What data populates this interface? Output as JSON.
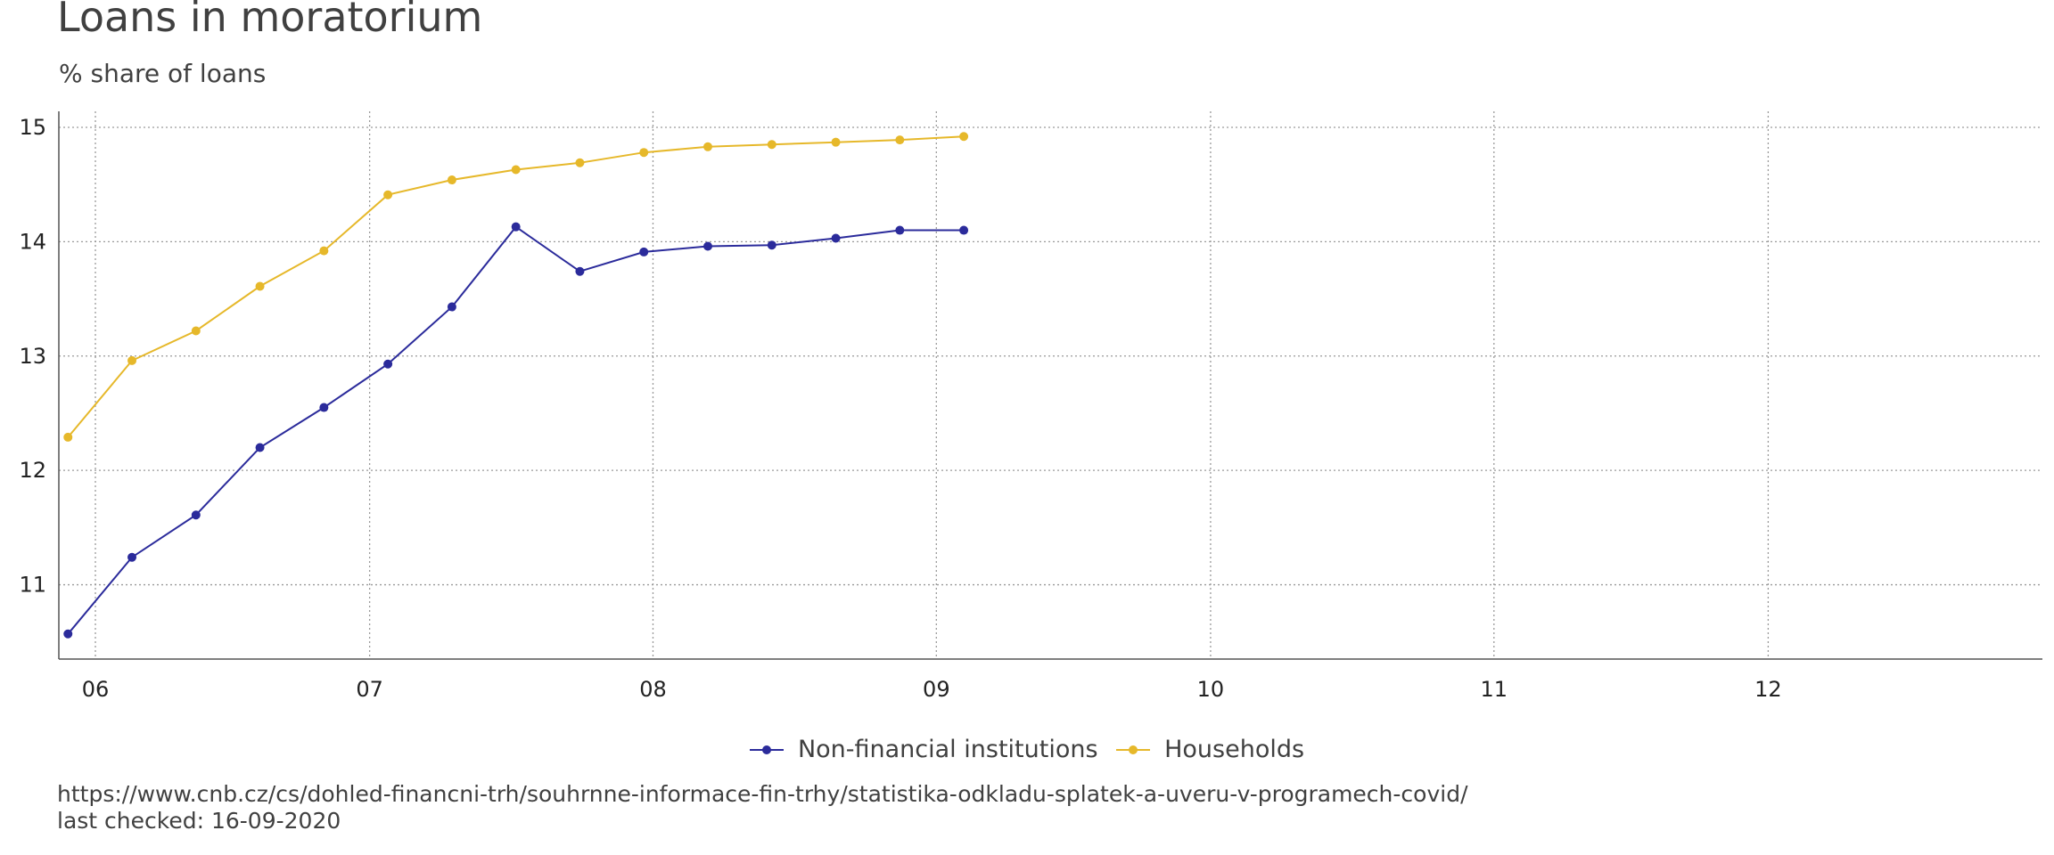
{
  "title": "Loans in moratorium",
  "subtitle": "% share of loans",
  "source": {
    "url": "https://www.cnb.cz/cs/dohled-financni-trh/souhrnne-informace-fin-trhy/statistika-odkladu-splatek-a-uveru-v-programech-covid/",
    "checked": "last checked: 16-09-2020"
  },
  "chart_data": {
    "type": "line",
    "title": "Loans in moratorium",
    "subtitle": "% share of loans",
    "xlabel": "",
    "ylabel": "",
    "x_ticks": [
      "06",
      "07",
      "08",
      "09",
      "10",
      "11",
      "12"
    ],
    "y_ticks": [
      11,
      12,
      13,
      14,
      15
    ],
    "xlim": [
      "2020-05-28",
      "2020-12-31"
    ],
    "ylim": [
      10.35,
      15.14
    ],
    "grid": true,
    "legend_position": "bottom",
    "x": [
      "2020-05-29",
      "2020-06-05",
      "2020-06-12",
      "2020-06-19",
      "2020-06-26",
      "2020-07-03",
      "2020-07-10",
      "2020-07-17",
      "2020-07-24",
      "2020-07-31",
      "2020-08-07",
      "2020-08-14",
      "2020-08-21",
      "2020-08-28",
      "2020-09-04"
    ],
    "series": [
      {
        "name": "Non-financial institutions",
        "color": "#2b2b9b",
        "values": [
          10.57,
          11.24,
          11.61,
          12.2,
          12.55,
          12.93,
          13.43,
          14.13,
          13.74,
          13.91,
          13.96,
          13.97,
          14.03,
          14.1,
          14.1
        ]
      },
      {
        "name": "Households",
        "color": "#e6b82a",
        "values": [
          12.29,
          12.96,
          13.22,
          13.61,
          13.92,
          14.41,
          14.54,
          14.63,
          14.69,
          14.78,
          14.83,
          14.85,
          14.87,
          14.89,
          14.92
        ]
      }
    ]
  }
}
